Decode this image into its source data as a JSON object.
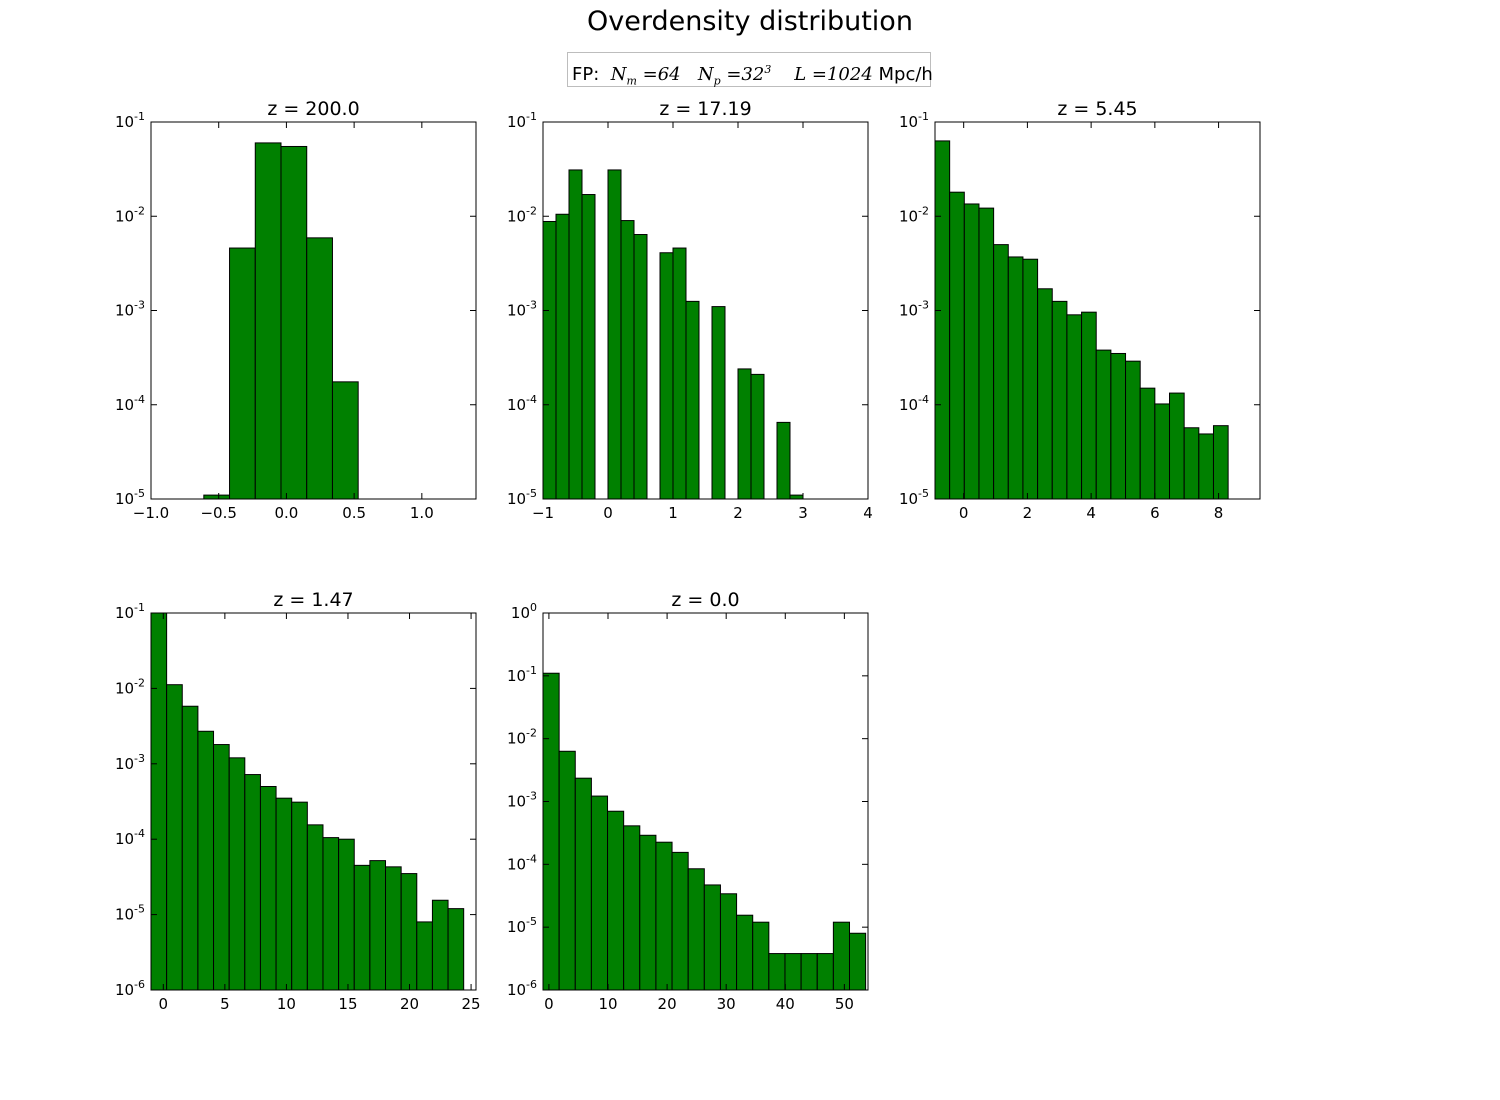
{
  "figure": {
    "title": "Overdensity distribution",
    "legend": {
      "prefix": "FP:",
      "nm_label": "N",
      "nm_sub": "m",
      "nm_value": " =64",
      "np_label": "N",
      "np_sub": "p",
      "np_value": " =32",
      "np_sup": "3",
      "l_label": "L",
      "l_value": " =1024",
      "unit": " Mpc/h"
    }
  },
  "colors": {
    "bar_fill": "#008000",
    "bar_edge": "#000000",
    "axes": "#000000",
    "background": "#ffffff"
  },
  "chart_data": [
    {
      "type": "bar",
      "title": "z = 200.0",
      "xscale": "linear",
      "yscale": "log",
      "xlim": [
        -1.0,
        1.4
      ],
      "ylim": [
        1e-05,
        0.1
      ],
      "xticks": [
        -1.0,
        -0.5,
        0.0,
        0.5,
        1.0
      ],
      "xtick_labels": [
        "−1.0",
        "−0.5",
        "0.0",
        "0.5",
        "1.0"
      ],
      "yticks": [
        -5,
        -4,
        -3,
        -2,
        -1
      ],
      "bins": [
        {
          "x0": -0.61,
          "x1": -0.42,
          "value": 1.1e-05
        },
        {
          "x0": -0.42,
          "x1": -0.23,
          "value": 0.0046
        },
        {
          "x0": -0.23,
          "x1": -0.04,
          "value": 0.06
        },
        {
          "x0": -0.04,
          "x1": 0.15,
          "value": 0.055
        },
        {
          "x0": 0.15,
          "x1": 0.34,
          "value": 0.0059
        },
        {
          "x0": 0.34,
          "x1": 0.53,
          "value": 0.000175
        }
      ]
    },
    {
      "type": "bar",
      "title": "z = 17.19",
      "xscale": "linear",
      "yscale": "log",
      "xlim": [
        -1,
        4
      ],
      "ylim": [
        1e-05,
        0.1
      ],
      "xticks": [
        -1,
        0,
        1,
        2,
        3,
        4
      ],
      "xtick_labels": [
        "−1",
        "0",
        "1",
        "2",
        "3",
        "4"
      ],
      "yticks": [
        -5,
        -4,
        -3,
        -2,
        -1
      ],
      "bins": [
        {
          "x0": -1.0,
          "x1": -0.8,
          "value": 0.0088
        },
        {
          "x0": -0.8,
          "x1": -0.6,
          "value": 0.0105
        },
        {
          "x0": -0.6,
          "x1": -0.4,
          "value": 0.031
        },
        {
          "x0": -0.4,
          "x1": -0.2,
          "value": 0.017
        },
        {
          "x0": 0.0,
          "x1": 0.2,
          "value": 0.031
        },
        {
          "x0": 0.2,
          "x1": 0.4,
          "value": 0.009
        },
        {
          "x0": 0.4,
          "x1": 0.6,
          "value": 0.0064
        },
        {
          "x0": 0.8,
          "x1": 1.0,
          "value": 0.0041
        },
        {
          "x0": 1.0,
          "x1": 1.2,
          "value": 0.0046
        },
        {
          "x0": 1.2,
          "x1": 1.4,
          "value": 0.00125
        },
        {
          "x0": 1.6,
          "x1": 1.8,
          "value": 0.0011
        },
        {
          "x0": 2.0,
          "x1": 2.2,
          "value": 0.00024
        },
        {
          "x0": 2.2,
          "x1": 2.4,
          "value": 0.00021
        },
        {
          "x0": 2.6,
          "x1": 2.8,
          "value": 6.5e-05
        },
        {
          "x0": 2.8,
          "x1": 3.0,
          "value": 1.1e-05
        }
      ]
    },
    {
      "type": "bar",
      "title": "z = 5.45",
      "xscale": "linear",
      "yscale": "log",
      "xlim": [
        -0.9,
        9.3
      ],
      "ylim": [
        1e-05,
        0.1
      ],
      "xticks": [
        0,
        2,
        4,
        6,
        8
      ],
      "xtick_labels": [
        "0",
        "2",
        "4",
        "6",
        "8"
      ],
      "yticks": [
        -5,
        -4,
        -3,
        -2,
        -1
      ],
      "bins": [
        {
          "x0": -0.9,
          "x1": -0.44,
          "value": 0.063
        },
        {
          "x0": -0.44,
          "x1": 0.02,
          "value": 0.018
        },
        {
          "x0": 0.02,
          "x1": 0.48,
          "value": 0.0135
        },
        {
          "x0": 0.48,
          "x1": 0.94,
          "value": 0.0122
        },
        {
          "x0": 0.94,
          "x1": 1.4,
          "value": 0.005
        },
        {
          "x0": 1.4,
          "x1": 1.86,
          "value": 0.0037
        },
        {
          "x0": 1.86,
          "x1": 2.32,
          "value": 0.0035
        },
        {
          "x0": 2.32,
          "x1": 2.78,
          "value": 0.0017
        },
        {
          "x0": 2.78,
          "x1": 3.24,
          "value": 0.00125
        },
        {
          "x0": 3.24,
          "x1": 3.7,
          "value": 0.0009
        },
        {
          "x0": 3.7,
          "x1": 4.16,
          "value": 0.00096
        },
        {
          "x0": 4.16,
          "x1": 4.62,
          "value": 0.00038
        },
        {
          "x0": 4.62,
          "x1": 5.08,
          "value": 0.00035
        },
        {
          "x0": 5.08,
          "x1": 5.54,
          "value": 0.00029
        },
        {
          "x0": 5.54,
          "x1": 6.0,
          "value": 0.00015
        },
        {
          "x0": 6.0,
          "x1": 6.46,
          "value": 0.000102
        },
        {
          "x0": 6.46,
          "x1": 6.92,
          "value": 0.000133
        },
        {
          "x0": 6.92,
          "x1": 7.38,
          "value": 5.7e-05
        },
        {
          "x0": 7.38,
          "x1": 7.84,
          "value": 4.9e-05
        },
        {
          "x0": 7.84,
          "x1": 8.3,
          "value": 6e-05
        }
      ]
    },
    {
      "type": "bar",
      "title": "z = 1.47",
      "xscale": "linear",
      "yscale": "log",
      "xlim": [
        -1,
        25.4
      ],
      "ylim": [
        1e-06,
        0.1
      ],
      "xticks": [
        0,
        5,
        10,
        15,
        20,
        25
      ],
      "xtick_labels": [
        "0",
        "5",
        "10",
        "15",
        "20",
        "25"
      ],
      "yticks": [
        -6,
        -5,
        -4,
        -3,
        -2,
        -1
      ],
      "bins": [
        {
          "x0": -1.0,
          "x1": 0.27,
          "value": 0.1
        },
        {
          "x0": 0.27,
          "x1": 1.54,
          "value": 0.0112
        },
        {
          "x0": 1.54,
          "x1": 2.81,
          "value": 0.0058
        },
        {
          "x0": 2.81,
          "x1": 4.08,
          "value": 0.0027
        },
        {
          "x0": 4.08,
          "x1": 5.35,
          "value": 0.0018
        },
        {
          "x0": 5.35,
          "x1": 6.62,
          "value": 0.0012
        },
        {
          "x0": 6.62,
          "x1": 7.89,
          "value": 0.00072
        },
        {
          "x0": 7.89,
          "x1": 9.16,
          "value": 0.0005
        },
        {
          "x0": 9.16,
          "x1": 10.43,
          "value": 0.00035
        },
        {
          "x0": 10.43,
          "x1": 11.7,
          "value": 0.00031
        },
        {
          "x0": 11.7,
          "x1": 12.97,
          "value": 0.000155
        },
        {
          "x0": 12.97,
          "x1": 14.24,
          "value": 0.000105
        },
        {
          "x0": 14.24,
          "x1": 15.51,
          "value": 0.0001
        },
        {
          "x0": 15.51,
          "x1": 16.78,
          "value": 4.5e-05
        },
        {
          "x0": 16.78,
          "x1": 18.05,
          "value": 5.2e-05
        },
        {
          "x0": 18.05,
          "x1": 19.32,
          "value": 4.3e-05
        },
        {
          "x0": 19.32,
          "x1": 20.59,
          "value": 3.5e-05
        },
        {
          "x0": 20.59,
          "x1": 21.86,
          "value": 8e-06
        },
        {
          "x0": 21.86,
          "x1": 23.13,
          "value": 1.55e-05
        },
        {
          "x0": 23.13,
          "x1": 24.4,
          "value": 1.2e-05
        }
      ]
    },
    {
      "type": "bar",
      "title": "z = 0.0",
      "xscale": "linear",
      "yscale": "log",
      "xlim": [
        -1,
        54
      ],
      "ylim": [
        1e-06,
        1
      ],
      "xticks": [
        0,
        10,
        20,
        30,
        40,
        50
      ],
      "xtick_labels": [
        "0",
        "10",
        "20",
        "30",
        "40",
        "50"
      ],
      "yticks": [
        -6,
        -5,
        -4,
        -3,
        -2,
        -1,
        0
      ],
      "bins": [
        {
          "x0": -1.0,
          "x1": 1.73,
          "value": 0.11
        },
        {
          "x0": 1.73,
          "x1": 4.46,
          "value": 0.0063
        },
        {
          "x0": 4.46,
          "x1": 7.19,
          "value": 0.00235
        },
        {
          "x0": 7.19,
          "x1": 9.92,
          "value": 0.00122
        },
        {
          "x0": 9.92,
          "x1": 12.65,
          "value": 0.0007
        },
        {
          "x0": 12.65,
          "x1": 15.38,
          "value": 0.00041
        },
        {
          "x0": 15.38,
          "x1": 18.11,
          "value": 0.00029
        },
        {
          "x0": 18.11,
          "x1": 20.84,
          "value": 0.000225
        },
        {
          "x0": 20.84,
          "x1": 23.57,
          "value": 0.000155
        },
        {
          "x0": 23.57,
          "x1": 26.3,
          "value": 8.5e-05
        },
        {
          "x0": 26.3,
          "x1": 29.03,
          "value": 4.7e-05
        },
        {
          "x0": 29.03,
          "x1": 31.76,
          "value": 3.4e-05
        },
        {
          "x0": 31.76,
          "x1": 34.49,
          "value": 1.55e-05
        },
        {
          "x0": 34.49,
          "x1": 37.22,
          "value": 1.2e-05
        },
        {
          "x0": 37.22,
          "x1": 39.95,
          "value": 3.8e-06
        },
        {
          "x0": 39.95,
          "x1": 42.68,
          "value": 3.8e-06
        },
        {
          "x0": 42.68,
          "x1": 45.41,
          "value": 3.8e-06
        },
        {
          "x0": 45.41,
          "x1": 48.14,
          "value": 3.8e-06
        },
        {
          "x0": 48.14,
          "x1": 50.87,
          "value": 1.2e-05
        },
        {
          "x0": 50.87,
          "x1": 53.6,
          "value": 8e-06
        }
      ]
    }
  ]
}
